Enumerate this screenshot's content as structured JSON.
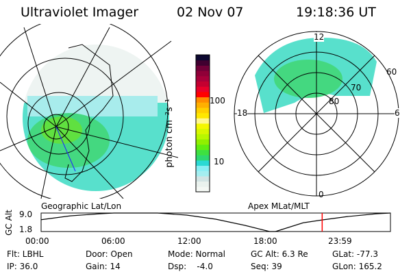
{
  "header": {
    "instrument": "Ultraviolet Imager",
    "date": "02 Nov 07",
    "time": "19:18:36 UT"
  },
  "colorbar": {
    "label": "photon cm⁻²s⁻¹",
    "ticks": [
      "100",
      "10"
    ],
    "colors": [
      "#f4f8f4",
      "#eaf2ee",
      "#d2e4e4",
      "#a4eef0",
      "#88eef4",
      "#2ad9d4",
      "#2ed870",
      "#3ee040",
      "#60ee10",
      "#90f000",
      "#b8f800",
      "#d8f800",
      "#f4f800",
      "#fff890",
      "#ffe800",
      "#ffd000",
      "#ffb000",
      "#ff8c00",
      "#ff0000",
      "#e8002a",
      "#c40030",
      "#a8003a",
      "#900038",
      "#700038",
      "#400030",
      "#0c0830"
    ]
  },
  "left_panel": {
    "caption": "Geographic Lat/Lon"
  },
  "right_panel": {
    "caption": "Apex MLat/MLT",
    "mlt_labels": [
      "12",
      "6",
      "0",
      "18"
    ],
    "lat_labels": [
      "60",
      "70",
      "80"
    ]
  },
  "chart_data": {
    "type": "line",
    "title": "",
    "ylabel": "GC Alt",
    "yticks": [
      "9.0",
      "1.8"
    ],
    "ylim": [
      1.8,
      9.0
    ],
    "xticks": [
      "00:00",
      "06:00",
      "12:00",
      "18:00",
      "23:59"
    ],
    "xlim": [
      0,
      24
    ],
    "x": [
      0,
      2,
      4,
      5,
      8,
      10,
      12,
      14,
      15.7,
      16.1,
      18,
      19.3,
      21,
      23,
      24
    ],
    "y": [
      6.4,
      7.9,
      8.7,
      9.0,
      9.0,
      8.2,
      6.6,
      4.2,
      1.8,
      1.8,
      5.2,
      6.3,
      7.6,
      8.7,
      9.0
    ],
    "marker_time": 19.31,
    "marker_color": "#ff0000"
  },
  "info": [
    [
      "Flt: LBHL",
      "IP: 36.0"
    ],
    [
      "Door: Open",
      "Gain: 14"
    ],
    [
      "Mode: Normal",
      "Dsp:    -4.0"
    ],
    [
      "GC Alt: 6.3 Re",
      "Seq: 39"
    ],
    [
      "GLat: -77.3",
      "GLon: 165.2"
    ]
  ]
}
